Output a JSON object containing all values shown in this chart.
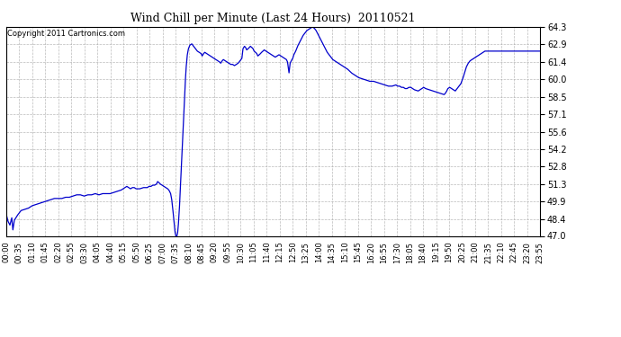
{
  "title": "Wind Chill per Minute (Last 24 Hours)  20110521",
  "copyright": "Copyright 2011 Cartronics.com",
  "line_color": "#0000cc",
  "background_color": "#ffffff",
  "plot_bg_color": "#ffffff",
  "grid_color": "#aaaaaa",
  "ylim": [
    47.0,
    64.3
  ],
  "yticks": [
    47.0,
    48.4,
    49.9,
    51.3,
    52.8,
    54.2,
    55.6,
    57.1,
    58.5,
    60.0,
    61.4,
    62.9,
    64.3
  ],
  "xtick_labels": [
    "00:00",
    "00:35",
    "01:10",
    "01:45",
    "02:20",
    "02:55",
    "03:30",
    "04:05",
    "04:40",
    "05:15",
    "05:50",
    "06:25",
    "07:00",
    "07:35",
    "08:10",
    "08:45",
    "09:20",
    "09:55",
    "10:30",
    "11:05",
    "11:40",
    "12:15",
    "12:50",
    "13:25",
    "14:00",
    "14:35",
    "15:10",
    "15:45",
    "16:20",
    "16:55",
    "17:30",
    "18:05",
    "18:40",
    "19:15",
    "19:50",
    "20:25",
    "21:00",
    "21:35",
    "22:10",
    "22:45",
    "23:20",
    "23:55"
  ],
  "num_points": 1440,
  "key_points": {
    "0": 48.8,
    "5": 48.2,
    "10": 47.9,
    "15": 48.5,
    "18": 47.5,
    "22": 48.3,
    "30": 48.7,
    "40": 49.1,
    "50": 49.2,
    "60": 49.3,
    "70": 49.5,
    "80": 49.6,
    "90": 49.7,
    "100": 49.8,
    "110": 49.9,
    "120": 50.0,
    "130": 50.1,
    "140": 50.1,
    "150": 50.1,
    "160": 50.2,
    "170": 50.2,
    "180": 50.3,
    "190": 50.4,
    "200": 50.4,
    "210": 50.3,
    "220": 50.4,
    "230": 50.4,
    "240": 50.5,
    "250": 50.4,
    "260": 50.5,
    "270": 50.5,
    "280": 50.5,
    "290": 50.6,
    "300": 50.7,
    "310": 50.8,
    "315": 50.9,
    "320": 51.0,
    "325": 51.1,
    "330": 51.0,
    "335": 50.9,
    "340": 51.0,
    "345": 51.0,
    "350": 50.9,
    "360": 50.9,
    "370": 51.0,
    "380": 51.0,
    "385": 51.1,
    "390": 51.1,
    "395": 51.2,
    "400": 51.2,
    "405": 51.3,
    "408": 51.5,
    "412": 51.4,
    "415": 51.3,
    "420": 51.2,
    "425": 51.1,
    "430": 51.0,
    "435": 50.9,
    "438": 50.8,
    "440": 50.7,
    "443": 50.5,
    "446": 50.0,
    "449": 49.2,
    "452": 48.2,
    "455": 47.3,
    "457": 47.0,
    "460": 47.0,
    "462": 47.3,
    "464": 48.0,
    "467": 49.5,
    "470": 51.5,
    "473": 53.5,
    "476": 55.5,
    "479": 57.5,
    "482": 59.5,
    "485": 61.0,
    "488": 62.0,
    "491": 62.5,
    "495": 62.8,
    "500": 62.9,
    "505": 62.7,
    "510": 62.5,
    "515": 62.3,
    "520": 62.2,
    "525": 62.1,
    "528": 61.9,
    "532": 62.1,
    "535": 62.2,
    "540": 62.1,
    "545": 62.0,
    "550": 61.9,
    "555": 61.8,
    "560": 61.7,
    "565": 61.6,
    "570": 61.5,
    "575": 61.4,
    "578": 61.3,
    "582": 61.5,
    "585": 61.6,
    "590": 61.5,
    "595": 61.4,
    "600": 61.3,
    "605": 61.2,
    "610": 61.2,
    "615": 61.1,
    "620": 61.2,
    "625": 61.3,
    "630": 61.5,
    "635": 61.7,
    "638": 62.5,
    "642": 62.7,
    "645": 62.6,
    "648": 62.4,
    "652": 62.5,
    "655": 62.6,
    "658": 62.7,
    "662": 62.6,
    "665": 62.5,
    "668": 62.3,
    "672": 62.2,
    "675": 62.1,
    "678": 61.9,
    "682": 62.0,
    "685": 62.1,
    "688": 62.2,
    "692": 62.3,
    "695": 62.4,
    "700": 62.3,
    "705": 62.2,
    "710": 62.1,
    "715": 62.0,
    "720": 61.9,
    "725": 61.8,
    "730": 61.9,
    "735": 62.0,
    "740": 61.9,
    "745": 61.8,
    "750": 61.7,
    "755": 61.6,
    "758": 61.4,
    "762": 60.5,
    "765": 61.3,
    "768": 61.5,
    "772": 61.7,
    "775": 62.0,
    "780": 62.3,
    "785": 62.7,
    "790": 63.0,
    "795": 63.3,
    "800": 63.6,
    "805": 63.8,
    "810": 64.0,
    "815": 64.1,
    "820": 64.2,
    "825": 64.3,
    "830": 64.2,
    "835": 64.0,
    "840": 63.7,
    "845": 63.4,
    "850": 63.1,
    "855": 62.8,
    "860": 62.5,
    "865": 62.2,
    "870": 62.0,
    "875": 61.8,
    "880": 61.6,
    "885": 61.5,
    "890": 61.4,
    "895": 61.3,
    "900": 61.2,
    "910": 61.0,
    "920": 60.8,
    "930": 60.5,
    "940": 60.3,
    "950": 60.1,
    "960": 60.0,
    "970": 59.9,
    "980": 59.8,
    "990": 59.8,
    "1000": 59.7,
    "1010": 59.6,
    "1020": 59.5,
    "1030": 59.4,
    "1040": 59.4,
    "1050": 59.5,
    "1055": 59.4,
    "1060": 59.4,
    "1065": 59.3,
    "1070": 59.3,
    "1075": 59.2,
    "1080": 59.2,
    "1085": 59.3,
    "1090": 59.3,
    "1095": 59.2,
    "1100": 59.1,
    "1110": 59.0,
    "1115": 59.1,
    "1120": 59.2,
    "1125": 59.3,
    "1130": 59.2,
    "1140": 59.1,
    "1150": 59.0,
    "1160": 58.9,
    "1170": 58.8,
    "1180": 58.7,
    "1183": 58.8,
    "1187": 59.0,
    "1190": 59.2,
    "1195": 59.3,
    "1200": 59.2,
    "1205": 59.1,
    "1210": 59.0,
    "1215": 59.2,
    "1220": 59.4,
    "1225": 59.6,
    "1230": 60.0,
    "1235": 60.5,
    "1240": 61.0,
    "1245": 61.3,
    "1250": 61.5,
    "1255": 61.6,
    "1260": 61.7,
    "1265": 61.8,
    "1270": 61.9,
    "1275": 62.0,
    "1280": 62.1,
    "1285": 62.2,
    "1290": 62.3,
    "1295": 62.3,
    "1300": 62.3,
    "1310": 62.3,
    "1320": 62.3,
    "1330": 62.3,
    "1340": 62.3,
    "1350": 62.3,
    "1360": 62.3,
    "1370": 62.3,
    "1380": 62.3,
    "1390": 62.3,
    "1400": 62.3,
    "1410": 62.3,
    "1420": 62.3,
    "1430": 62.3,
    "1439": 62.3
  }
}
